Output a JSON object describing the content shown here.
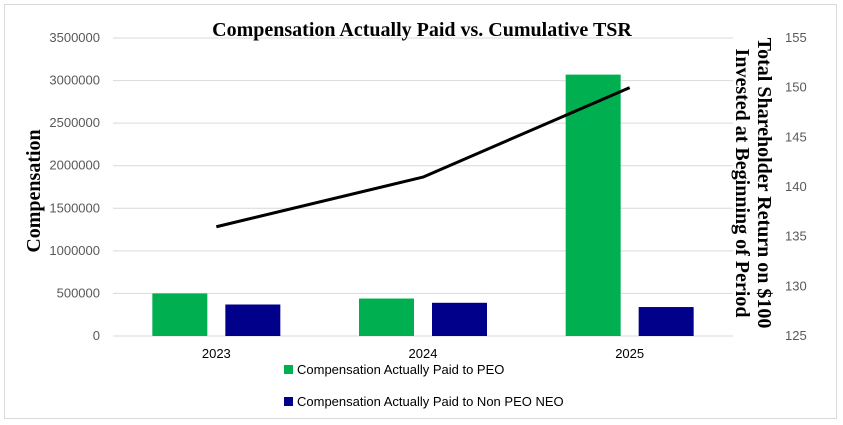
{
  "chart_data": {
    "type": "bar",
    "title": "Compensation Actually Paid vs. Cumulative TSR",
    "categories": [
      "2023",
      "2024",
      "2025"
    ],
    "ylabel": "Compensation",
    "y2label_line1": "Total Shareholder Return on $100",
    "y2label_line2": "Invested at Beginning of Period",
    "ylim": [
      0,
      3500000
    ],
    "yticks": [
      "0",
      "500000",
      "1000000",
      "1500000",
      "2000000",
      "2500000",
      "3000000",
      "3500000"
    ],
    "y2lim": [
      125,
      155
    ],
    "y2ticks": [
      "125",
      "130",
      "135",
      "140",
      "145",
      "150",
      "155"
    ],
    "series": [
      {
        "name": "Compensation Actually Paid to PEO",
        "type": "bar",
        "axis": "left",
        "color": "#00b050",
        "values": [
          500000,
          440000,
          3070000
        ]
      },
      {
        "name": "Compensation Actually Paid to Non PEO NEO",
        "type": "bar",
        "axis": "left",
        "color": "#00008b",
        "values": [
          370000,
          390000,
          340000
        ]
      },
      {
        "type": "line",
        "axis": "right",
        "color": "#000000",
        "values": [
          136,
          141,
          150
        ]
      }
    ],
    "legend": "bottom",
    "grid": true
  }
}
